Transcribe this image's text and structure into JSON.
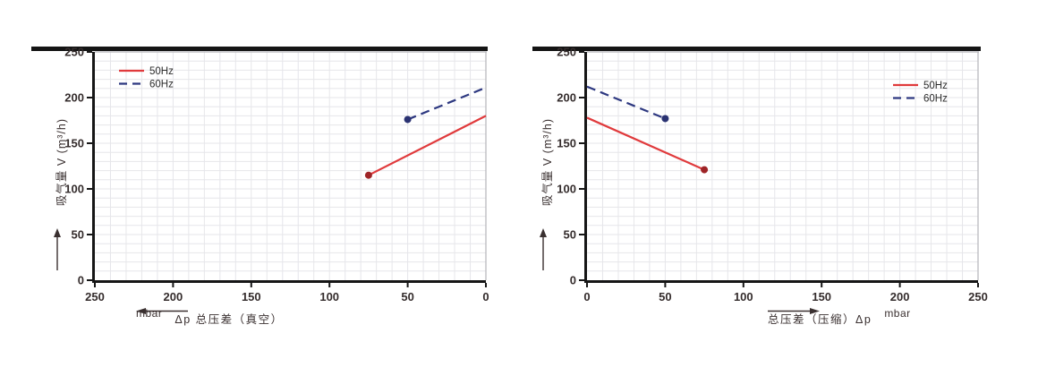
{
  "colors": {
    "red_line": "#e03a3c",
    "red_marker": "#9e2427",
    "navy_line": "#2d3880",
    "navy_marker": "#2a3272",
    "grid": "#e6e6ea",
    "plot_border": "#b5b5b9",
    "axis_spine": "#161616",
    "top_bar": "#141414",
    "text": "#342c2c"
  },
  "legend": {
    "items": [
      "50Hz",
      "60Hz"
    ]
  },
  "chart_data": [
    {
      "type": "line",
      "title": "",
      "xlabel": "Δp  总压差（真空）",
      "x_unit": "mbar",
      "x_arrow_direction": "left",
      "ylabel": "吸气量 V (m³/h)",
      "xlim": [
        250,
        0
      ],
      "ylim": [
        0,
        250
      ],
      "x_ticks": [
        250,
        200,
        150,
        100,
        50,
        0
      ],
      "y_ticks": [
        250,
        200,
        150,
        100,
        50,
        0
      ],
      "minor_grid_step": 10,
      "grid": true,
      "legend_position": "top-left",
      "series": [
        {
          "name": "50Hz",
          "dash": "solid",
          "color": "#e03a3c",
          "marker_color": "#9e2427",
          "points": [
            [
              75,
              115
            ],
            [
              0,
              180
            ]
          ],
          "markers": [
            [
              75,
              115
            ]
          ]
        },
        {
          "name": "60Hz",
          "dash": "dashed",
          "color": "#2d3880",
          "marker_color": "#2a3272",
          "points": [
            [
              50,
              176
            ],
            [
              0,
              211
            ]
          ],
          "markers": [
            [
              50,
              176
            ]
          ]
        }
      ]
    },
    {
      "type": "line",
      "title": "",
      "xlabel": "总压差（压缩）Δp",
      "x_unit": "mbar",
      "x_arrow_direction": "right",
      "ylabel": "吸气量 V (m³/h)",
      "xlim": [
        0,
        250
      ],
      "ylim": [
        0,
        250
      ],
      "x_ticks": [
        0,
        50,
        100,
        150,
        200,
        250
      ],
      "y_ticks": [
        250,
        200,
        150,
        100,
        50,
        0
      ],
      "minor_grid_step": 10,
      "grid": true,
      "legend_position": "top-right",
      "series": [
        {
          "name": "50Hz",
          "dash": "solid",
          "color": "#e03a3c",
          "marker_color": "#9e2427",
          "points": [
            [
              0,
              178
            ],
            [
              75,
              121
            ]
          ],
          "markers": [
            [
              75,
              121
            ]
          ]
        },
        {
          "name": "60Hz",
          "dash": "dashed",
          "color": "#2d3880",
          "marker_color": "#2a3272",
          "points": [
            [
              0,
              212
            ],
            [
              50,
              177
            ]
          ],
          "markers": [
            [
              50,
              177
            ]
          ]
        }
      ]
    }
  ]
}
